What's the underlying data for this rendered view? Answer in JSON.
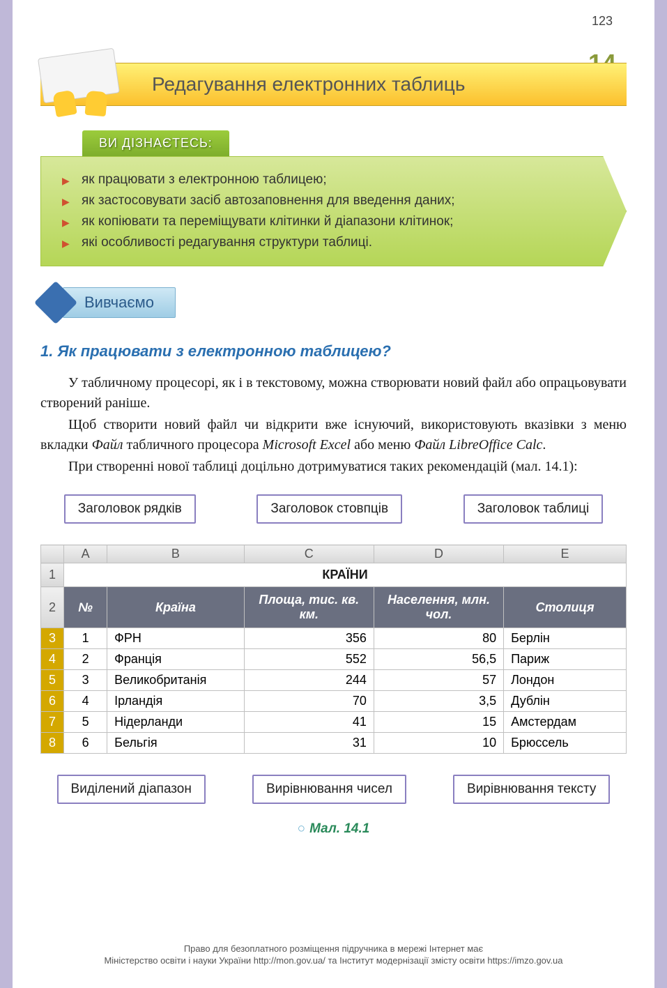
{
  "page_number": "123",
  "chapter_number": "14",
  "chapter_title": "Редагування електронних таблиць",
  "learn_tab": "ВИ ДІЗНАЄТЕСЬ:",
  "learn_items": [
    "як працювати з електронною таблицею;",
    "як застосовувати засіб автозаповнення для введення даних;",
    "як копіювати та переміщувати клітинки й діапазони клітинок;",
    "які особливості редагування структури таблиці."
  ],
  "study_label": "Вивчаємо",
  "question_heading": "1.  Як працювати з електронною таблицею?",
  "para1a": "У табличному процесорі, як і в текстовому, можна створювати новий файл або опрацьовувати створений раніше.",
  "para2a": "Щоб створити новий файл чи відкрити вже існуючий, використовують вказівки з меню вкладки ",
  "para2b": "Файл",
  "para2c": " табличного процесора ",
  "para2d": "Microsoft Excel",
  "para2e": " або меню ",
  "para2f": "Файл LibreOffice Calc",
  "para2g": ".",
  "para3": "При створенні нової таблиці доцільно дотримуватися таких рекомендацій (мал. 14.1):",
  "callouts_top": [
    "Заголовок рядків",
    "Заголовок стовпців",
    "Заголовок таблиці"
  ],
  "callouts_bottom": [
    "Виділений діапазон",
    "Вирівнювання чисел",
    "Вирівнювання тексту"
  ],
  "table": {
    "col_labels": [
      "",
      "A",
      "B",
      "C",
      "D",
      "E"
    ],
    "main_title": "КРАЇНИ",
    "headers": [
      "№",
      "Країна",
      "Площа, тис. кв. км.",
      "Населення, млн. чол.",
      "Столиця"
    ],
    "rows": [
      {
        "rl": "3",
        "n": "1",
        "country": "ФРН",
        "area": "356",
        "pop": "80",
        "cap": "Берлін"
      },
      {
        "rl": "4",
        "n": "2",
        "country": "Франція",
        "area": "552",
        "pop": "56,5",
        "cap": "Париж"
      },
      {
        "rl": "5",
        "n": "3",
        "country": "Великобританія",
        "area": "244",
        "pop": "57",
        "cap": "Лондон"
      },
      {
        "rl": "6",
        "n": "4",
        "country": "Ірландія",
        "area": "70",
        "pop": "3,5",
        "cap": "Дублін"
      },
      {
        "rl": "7",
        "n": "5",
        "country": "Нідерланди",
        "area": "41",
        "pop": "15",
        "cap": "Амстердам"
      },
      {
        "rl": "8",
        "n": "6",
        "country": "Бельгія",
        "area": "31",
        "pop": "10",
        "cap": "Брюссель"
      }
    ]
  },
  "figure_caption": "Мал. 14.1",
  "footer_line1": "Право для безоплатного розміщення підручника в мережі Інтернет має",
  "footer_line2": "Міністерство освіти і науки України http://mon.gov.ua/ та Інститут модернізації змісту освіти https://imzo.gov.ua",
  "colors": {
    "page_border": "#bfb8d8",
    "banner_grad_top": "#fff176",
    "banner_grad_bot": "#fbc02d",
    "green_tab_top": "#9ccc3c",
    "green_tab_bot": "#7eae2c",
    "green_body_top": "#d7e89a",
    "green_body_bot": "#b5d657",
    "bullet": "#d05030",
    "heading_blue": "#2a6fb0",
    "callout_border": "#8a7fc0",
    "table_header_bg": "#6a6f80",
    "row_sel": "#d4a800",
    "caption_green": "#2a8a5a"
  }
}
